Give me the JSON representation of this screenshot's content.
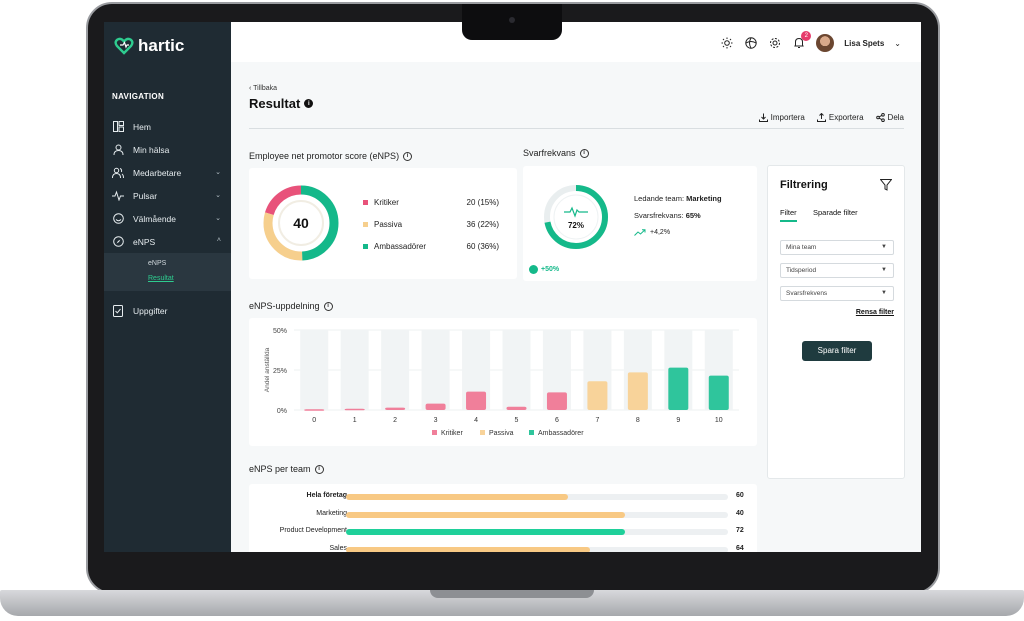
{
  "app": {
    "name": "hartic"
  },
  "sidebar": {
    "heading": "NAVIGATION",
    "items": [
      {
        "label": "Hem",
        "icon": "dashboard-icon"
      },
      {
        "label": "Min hälsa",
        "icon": "user-icon"
      },
      {
        "label": "Medarbetare",
        "icon": "users-icon"
      },
      {
        "label": "Pulsar",
        "icon": "pulse-icon"
      },
      {
        "label": "Välmående",
        "icon": "smile-icon"
      },
      {
        "label": "eNPS",
        "icon": "compass-icon"
      }
    ],
    "sub_items": [
      {
        "label": "eNPS"
      },
      {
        "label": "Resultat"
      }
    ],
    "bottom_item": {
      "label": "Uppgifter",
      "icon": "task-icon"
    }
  },
  "topbar": {
    "notification_count": "2",
    "user_name": "Lisa Spets"
  },
  "page": {
    "back_label": "Tillbaka",
    "title": "Resultat",
    "actions": {
      "import": "Importera",
      "export": "Exportera",
      "share": "Dela"
    }
  },
  "enps": {
    "heading": "Employee net promotor score (eNPS)",
    "score": "40",
    "legend": [
      {
        "label": "Kritiker",
        "value": "20 (15%)",
        "color": "#e8527a",
        "share": 15
      },
      {
        "label": "Passiva",
        "value": "36 (22%)",
        "color": "#f6cf8d",
        "share": 22
      },
      {
        "label": "Ambassadörer",
        "value": "60 (36%)",
        "color": "#14b88a",
        "share": 36
      }
    ]
  },
  "response": {
    "heading": "Svarfrekvans",
    "percent": "72%",
    "percent_value": 72,
    "leading_team_label": "Ledande team:",
    "leading_team": "Marketing",
    "rate_label": "Svarsfrekvans:",
    "rate": "65%",
    "trend": "+4,2%",
    "change": "+50%"
  },
  "filter": {
    "title": "Filtrering",
    "tabs": [
      "Filter",
      "Sparade filter"
    ],
    "selects": [
      "Mina team",
      "Tidsperiod",
      "Svarsfrekvens"
    ],
    "clear_label": "Rensa filter",
    "save_label": "Spara filter"
  },
  "breakdown": {
    "heading": "eNPS-uppdelning",
    "ylabel": "Andel anställda",
    "legend": [
      "Kritiker",
      "Passiva",
      "Ambassadörer"
    ]
  },
  "chart_data": {
    "type": "bar",
    "categories": [
      "0",
      "1",
      "2",
      "3",
      "4",
      "5",
      "6",
      "7",
      "8",
      "9",
      "10"
    ],
    "values": [
      0.5,
      0.8,
      1.5,
      4,
      11.5,
      2,
      11,
      18,
      23.5,
      26.5,
      21.5
    ],
    "groups": [
      "Kritiker",
      "Kritiker",
      "Kritiker",
      "Kritiker",
      "Kritiker",
      "Kritiker",
      "Kritiker",
      "Passiva",
      "Passiva",
      "Ambassadörer",
      "Ambassadörer"
    ],
    "ylim": [
      0,
      50
    ],
    "yticks": [
      "0%",
      "25%",
      "50%"
    ],
    "ylabel": "Andel anställda",
    "colors": {
      "Kritiker": "#f07f9a",
      "Passiva": "#f8d39a",
      "Ambassadörer": "#2fc59c"
    }
  },
  "per_team": {
    "heading": "eNPS per team",
    "rows": [
      {
        "label": "Hela företag",
        "value": "60",
        "fill": 58,
        "color": "#f8c984",
        "bold": true
      },
      {
        "label": "Marketing",
        "value": "40",
        "fill": 73,
        "color": "#f8c984",
        "bold": false
      },
      {
        "label": "Product Development",
        "value": "72",
        "fill": 73,
        "color": "#1fd09a",
        "bold": false
      },
      {
        "label": "Sales",
        "value": "64",
        "fill": 64,
        "color": "#f8c984",
        "bold": false
      }
    ]
  }
}
